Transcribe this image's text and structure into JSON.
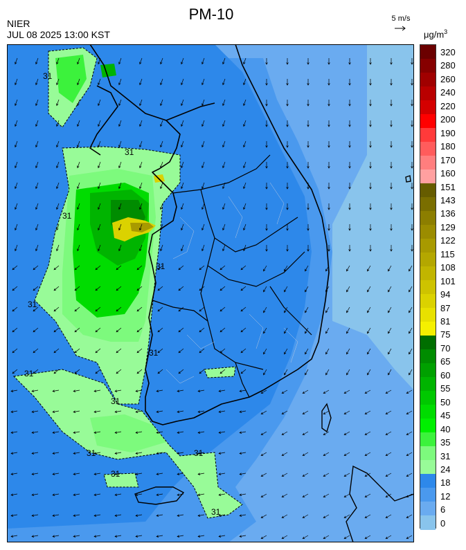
{
  "header": {
    "org": "NIER",
    "datetime": "JUL 08 2025 13:00 KST",
    "title": "PM-10",
    "wind_ref": "5 m/s",
    "unit": "μg/m",
    "unit_exp": "3"
  },
  "contour_labels": [
    "31",
    "31",
    "31",
    "31",
    "31",
    "31",
    "31",
    "31",
    "31",
    "31",
    "31",
    "31"
  ],
  "colorbar": {
    "labels": [
      "320",
      "280",
      "260",
      "240",
      "220",
      "200",
      "190",
      "180",
      "170",
      "160",
      "151",
      "143",
      "136",
      "129",
      "122",
      "115",
      "108",
      "101",
      "94",
      "87",
      "81",
      "75",
      "70",
      "65",
      "60",
      "55",
      "50",
      "45",
      "40",
      "35",
      "31",
      "24",
      "18",
      "12",
      "6",
      "0"
    ],
    "colors": [
      "#6b0000",
      "#860000",
      "#a00000",
      "#b90000",
      "#d40000",
      "#ff0000",
      "#ff3a3a",
      "#ff5c5c",
      "#ff7e7e",
      "#ffa0a0",
      "#665c00",
      "#7a6e00",
      "#8c7e00",
      "#9b8c00",
      "#a89a00",
      "#b4a700",
      "#c1b500",
      "#cec300",
      "#dbd200",
      "#e8e100",
      "#f5f000",
      "#006e00",
      "#008c00",
      "#00a000",
      "#00b400",
      "#00c800",
      "#00dc00",
      "#00f000",
      "#3cf23c",
      "#7dfa7d",
      "#98fb98",
      "#2d88ea",
      "#4a99ee",
      "#6aabf0",
      "#89c4ec",
      "#9fd2ee"
    ]
  }
}
